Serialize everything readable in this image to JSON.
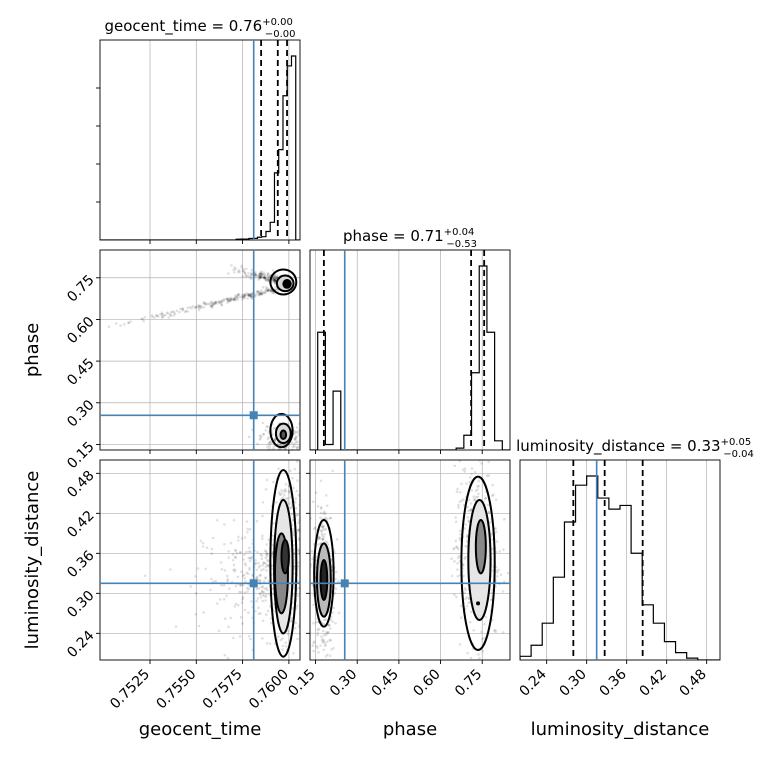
{
  "chart_data": {
    "type": "corner",
    "parameters": [
      "geocent_time",
      "phase",
      "luminosity_distance"
    ],
    "titles": [
      {
        "name": "geocent_time",
        "median": "0.76",
        "plus": "+0.00",
        "minus": "−0.00"
      },
      {
        "name": "phase",
        "median": "0.71",
        "plus": "+0.04",
        "minus": "−0.53"
      },
      {
        "name": "luminosity_distance",
        "median": "0.33",
        "plus": "+0.05",
        "minus": "−0.04"
      }
    ],
    "truths": {
      "geocent_time": 0.7581,
      "phase": 0.255,
      "luminosity_distance": 0.315
    },
    "ranges": {
      "geocent_time": [
        0.7498,
        0.7606
      ],
      "phase": [
        0.13,
        0.85
      ],
      "luminosity_distance": [
        0.2,
        0.5
      ]
    },
    "ticks": {
      "geocent_time": [
        "0.7525",
        "0.7550",
        "0.7575",
        "0.7600"
      ],
      "phase": [
        "0.15",
        "0.30",
        "0.45",
        "0.60",
        "0.75"
      ],
      "luminosity_distance": [
        "0.24",
        "0.30",
        "0.36",
        "0.42",
        "0.48"
      ]
    },
    "tick_values": {
      "geocent_time": [
        0.7525,
        0.755,
        0.7575,
        0.76
      ],
      "phase": [
        0.15,
        0.3,
        0.45,
        0.6,
        0.75
      ],
      "luminosity_distance": [
        0.24,
        0.3,
        0.36,
        0.42,
        0.48
      ]
    },
    "quantiles": {
      "geocent_time": [
        0.7585,
        0.7594,
        0.7599
      ],
      "phase": [
        0.18,
        0.71,
        0.757
      ],
      "luminosity_distance": [
        0.28,
        0.327,
        0.384
      ]
    },
    "histograms": {
      "geocent_time": [
        0,
        0,
        0,
        0,
        0,
        0,
        0,
        0,
        0,
        0,
        0,
        0,
        0,
        0,
        0,
        0,
        0,
        0,
        0,
        0,
        0,
        0,
        0,
        0,
        0,
        0,
        0,
        0,
        0,
        0,
        0,
        0,
        0.4,
        0.5,
        0.5,
        0.8,
        0.9,
        1.5,
        1.8,
        4.6,
        9.6,
        36.5,
        49.1,
        78.4,
        94.6,
        100,
        0
      ],
      "phase": [
        0,
        64,
        3,
        32,
        0,
        0,
        0,
        0,
        0,
        0,
        0,
        0,
        0,
        0,
        0,
        0,
        0,
        0,
        0,
        1,
        8,
        42,
        100,
        64,
        5,
        0
      ],
      "luminosity_distance": [
        2,
        8,
        20,
        45,
        75,
        95,
        100,
        88,
        82,
        84,
        58,
        30,
        20,
        10,
        4,
        1,
        0,
        0
      ]
    },
    "grid": true
  }
}
